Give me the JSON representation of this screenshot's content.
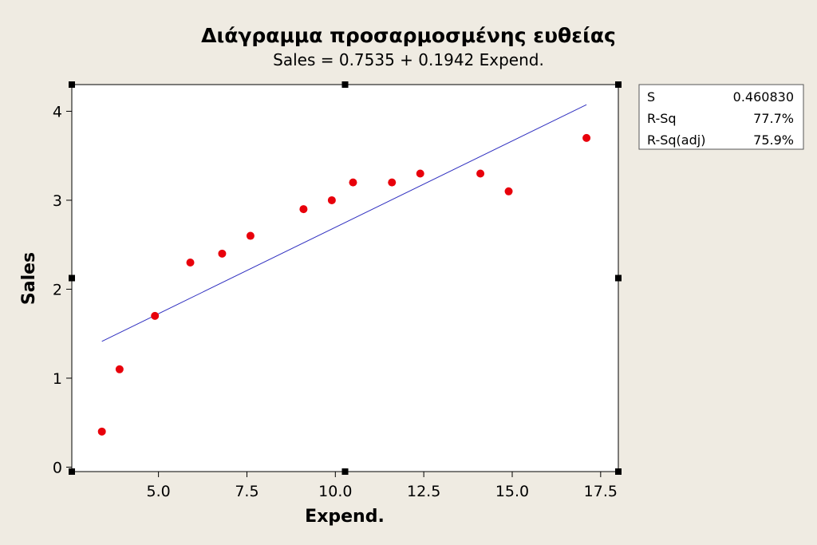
{
  "chart_data": {
    "type": "scatter",
    "title": "Διάγραμμα προσαρμοσμένης ευθείας",
    "subtitle": "Sales =  0.7535 + 0.1942 Expend.",
    "xlabel": "Expend.",
    "ylabel": "Sales",
    "xlim": [
      2.55,
      18.0
    ],
    "ylim": [
      -0.05,
      4.3
    ],
    "x_ticks": [
      5.0,
      7.5,
      10.0,
      12.5,
      15.0,
      17.5
    ],
    "x_tick_labels": [
      "5.0",
      "7.5",
      "10.0",
      "12.5",
      "15.0",
      "17.5"
    ],
    "y_ticks": [
      0,
      1,
      2,
      3,
      4
    ],
    "y_tick_labels": [
      "0",
      "1",
      "2",
      "3",
      "4"
    ],
    "grid": false,
    "series": [
      {
        "x": [
          3.4,
          3.9,
          4.9,
          5.9,
          6.8,
          7.6,
          9.1,
          9.9,
          10.5,
          11.6,
          12.4,
          14.1,
          14.9,
          17.1
        ],
        "y": [
          0.4,
          1.1,
          1.7,
          2.3,
          2.4,
          2.6,
          2.9,
          3.0,
          3.2,
          3.2,
          3.3,
          3.3,
          3.1,
          3.7
        ],
        "color": "#e8000b"
      }
    ],
    "fit_line": {
      "intercept": 0.7535,
      "slope": 0.1942,
      "x_range": [
        3.4,
        17.1
      ],
      "color": "#3030c0"
    },
    "stats": [
      {
        "label": "S",
        "value": "0.460830"
      },
      {
        "label": "R-Sq",
        "value": "77.7%"
      },
      {
        "label": "R-Sq(adj)",
        "value": "75.9%"
      }
    ]
  }
}
